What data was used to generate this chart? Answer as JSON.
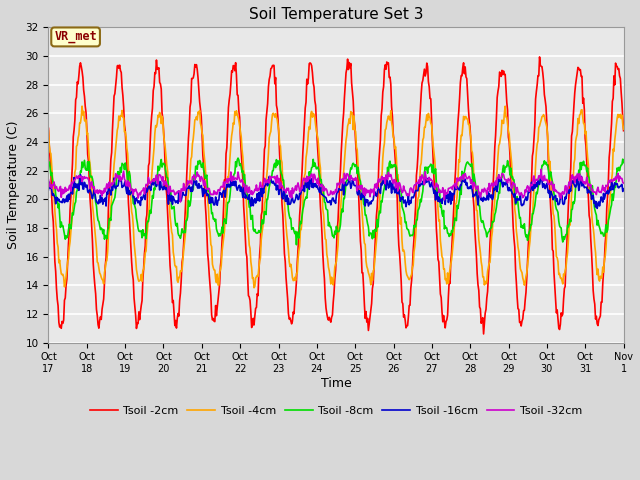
{
  "title": "Soil Temperature Set 3",
  "xlabel": "Time",
  "ylabel": "Soil Temperature (C)",
  "ylim": [
    10,
    32
  ],
  "yticks": [
    10,
    12,
    14,
    16,
    18,
    20,
    22,
    24,
    26,
    28,
    30,
    32
  ],
  "xtick_labels": [
    "Oct 17",
    "Oct 18",
    "Oct 19",
    "Oct 20",
    "Oct 21",
    "Oct 22",
    "Oct 23",
    "Oct 24",
    "Oct 25",
    "Oct 26",
    "Oct 27",
    "Oct 28",
    "Oct 29",
    "Oct 30",
    "Oct 31",
    "Nov 1"
  ],
  "series": {
    "Tsoil -2cm": {
      "color": "#FF0000",
      "lw": 1.2
    },
    "Tsoil -4cm": {
      "color": "#FFA500",
      "lw": 1.2
    },
    "Tsoil -8cm": {
      "color": "#00DD00",
      "lw": 1.2
    },
    "Tsoil -16cm": {
      "color": "#0000CC",
      "lw": 1.2
    },
    "Tsoil -32cm": {
      "color": "#CC00CC",
      "lw": 1.2
    }
  },
  "annotation_text": "VR_met",
  "annotation_fg": "#8B0000",
  "annotation_bg": "#FFFFCC",
  "annotation_edge": "#8B6914",
  "bg_color": "#D8D8D8",
  "plot_bg_color": "#E8E8E8",
  "n_days": 15,
  "pts_per_day": 48,
  "base_temp": 20.3,
  "amp_2cm": 9.0,
  "amp_4cm": 5.8,
  "amp_8cm": 2.5,
  "amp_16cm": 0.65,
  "amp_32cm": 0.55,
  "phase_shift_4cm": 2.0,
  "phase_shift_8cm": 5.5,
  "phase_shift_16cm": 0.0,
  "phase_shift_32cm": 0.0,
  "peak_hour_2cm": 14.0,
  "peak_hour_4cm": 15.5,
  "peak_hour_8cm": 17.0,
  "peak_hour_16cm": 14.0,
  "peak_hour_32cm": 14.0
}
